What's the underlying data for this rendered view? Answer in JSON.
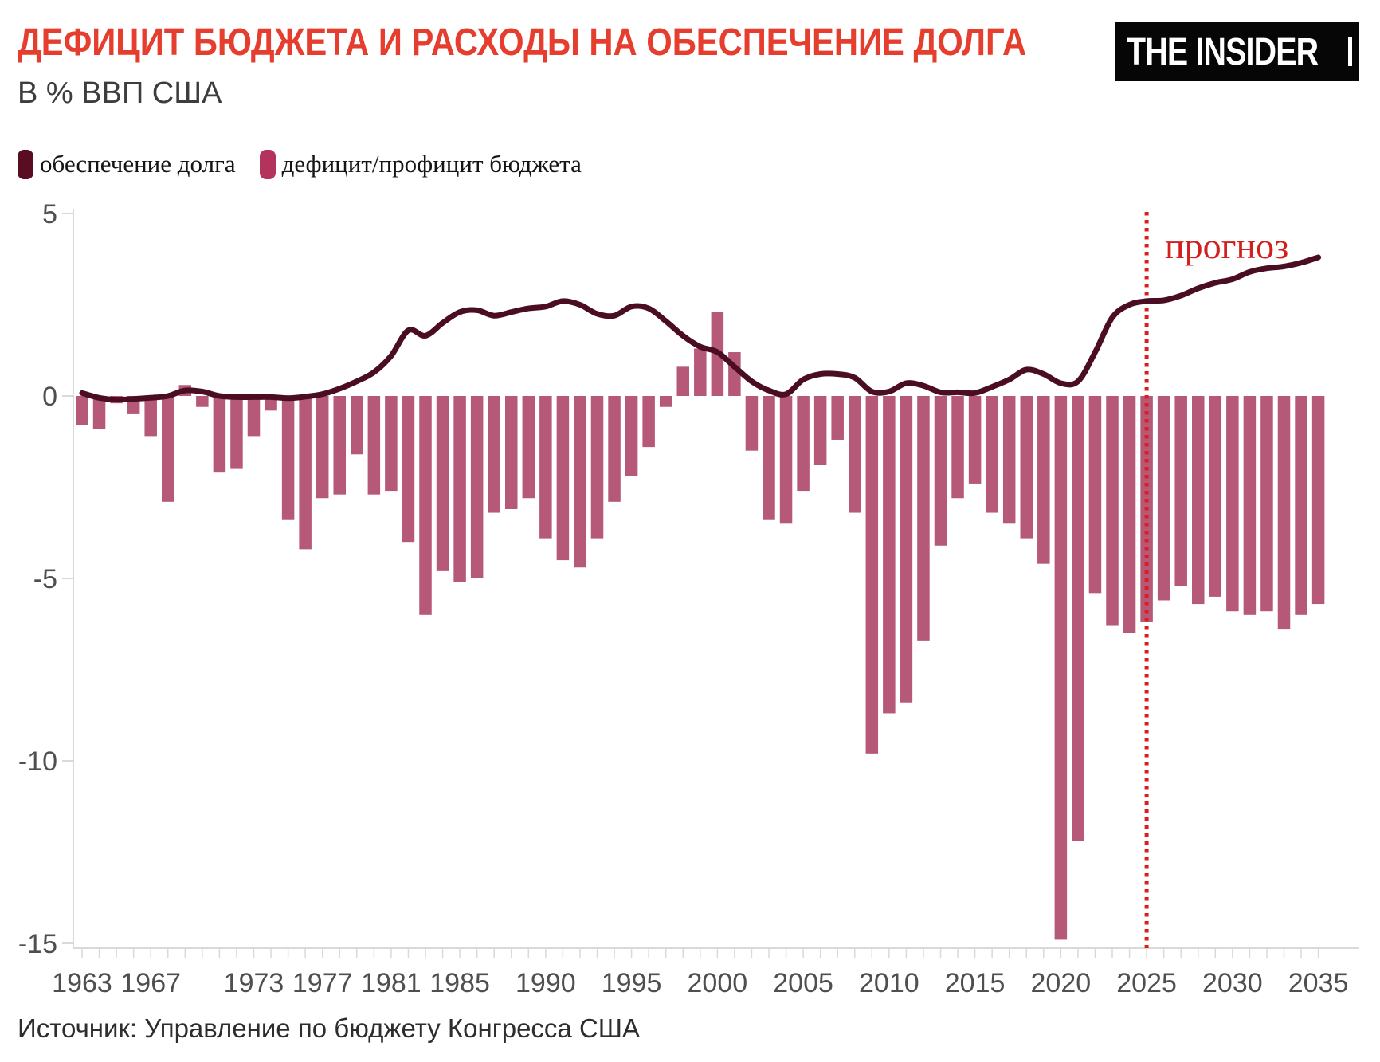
{
  "header": {
    "title": "ДЕФИЦИТ БЮДЖЕТА И РАСХОДЫ НА ОБЕСПЕЧЕНИЕ ДОЛГА",
    "subtitle": "В % ВВП США",
    "logo": "THE INSIDER"
  },
  "legend": {
    "items": [
      {
        "label": "обеспечение долга",
        "color": "#5a0c23"
      },
      {
        "label": "дефицит/профицит бюджета",
        "color": "#b4335c"
      }
    ]
  },
  "chart_data": {
    "type": "bar+line",
    "title": "ДЕФИЦИТ БЮДЖЕТА И РАСХОДЫ НА ОБЕСПЕЧЕНИЕ ДОЛГА",
    "subtitle": "В % ВВП США",
    "xlabel": "",
    "ylabel": "% ВВП США",
    "year_start": 1963,
    "year_end": 2035,
    "ylim": [
      -15.6,
      5.1
    ],
    "grid": false,
    "legend_position": "top-left",
    "y_ticks": [
      5,
      0,
      -5,
      -10,
      -15
    ],
    "x_tick_labels": [
      1963,
      1967,
      1973,
      1977,
      1981,
      1985,
      1990,
      1995,
      2000,
      2005,
      2010,
      2015,
      2020,
      2025,
      2030,
      2035
    ],
    "axis_color": "#d9d9d9",
    "tick_label_color": "#4f4f4f",
    "forecast": {
      "start_year": 2025,
      "label": "прогноз",
      "line_color": "#da1f1f",
      "label_color": "#d2201f"
    },
    "series": [
      {
        "name": "обеспечение долга",
        "type": "line",
        "color": "#4b0d23",
        "values": [
          0.08,
          -0.05,
          -0.1,
          -0.08,
          -0.05,
          0.0,
          0.15,
          0.12,
          0.0,
          -0.03,
          -0.03,
          -0.03,
          -0.06,
          -0.02,
          0.05,
          0.2,
          0.4,
          0.65,
          1.1,
          1.8,
          1.65,
          2.0,
          2.3,
          2.35,
          2.2,
          2.3,
          2.4,
          2.45,
          2.6,
          2.5,
          2.25,
          2.2,
          2.45,
          2.4,
          2.05,
          1.65,
          1.35,
          1.2,
          0.8,
          0.4,
          0.15,
          0.05,
          0.45,
          0.6,
          0.6,
          0.5,
          0.12,
          0.12,
          0.35,
          0.28,
          0.1,
          0.1,
          0.08,
          0.25,
          0.45,
          0.72,
          0.6,
          0.35,
          0.4,
          1.2,
          2.15,
          2.5,
          2.6,
          2.62,
          2.75,
          2.95,
          3.1,
          3.2,
          3.4,
          3.5,
          3.55,
          3.65,
          3.8
        ]
      },
      {
        "name": "дефицит/профицит бюджета",
        "type": "bar",
        "color": "#b65877",
        "values": [
          -0.8,
          -0.9,
          -0.2,
          -0.5,
          -1.1,
          -2.9,
          0.3,
          -0.3,
          -2.1,
          -2.0,
          -1.1,
          -0.4,
          -3.4,
          -4.2,
          -2.8,
          -2.7,
          -1.6,
          -2.7,
          -2.6,
          -4.0,
          -6.0,
          -4.8,
          -5.1,
          -5.0,
          -3.2,
          -3.1,
          -2.8,
          -3.9,
          -4.5,
          -4.7,
          -3.9,
          -2.9,
          -2.2,
          -1.4,
          -0.3,
          0.8,
          1.3,
          2.3,
          1.2,
          -1.5,
          -3.4,
          -3.5,
          -2.6,
          -1.9,
          -1.2,
          -3.2,
          -9.8,
          -8.7,
          -8.4,
          -6.7,
          -4.1,
          -2.8,
          -2.4,
          -3.2,
          -3.5,
          -3.9,
          -4.6,
          -14.9,
          -12.2,
          -5.4,
          -6.3,
          -6.5,
          -6.2,
          -5.6,
          -5.2,
          -5.7,
          -5.5,
          -5.9,
          -6.0,
          -5.9,
          -6.4,
          -6.0,
          -5.7
        ]
      }
    ]
  },
  "footer": {
    "source": "Источник: Управление по бюджету Конгресса США"
  }
}
